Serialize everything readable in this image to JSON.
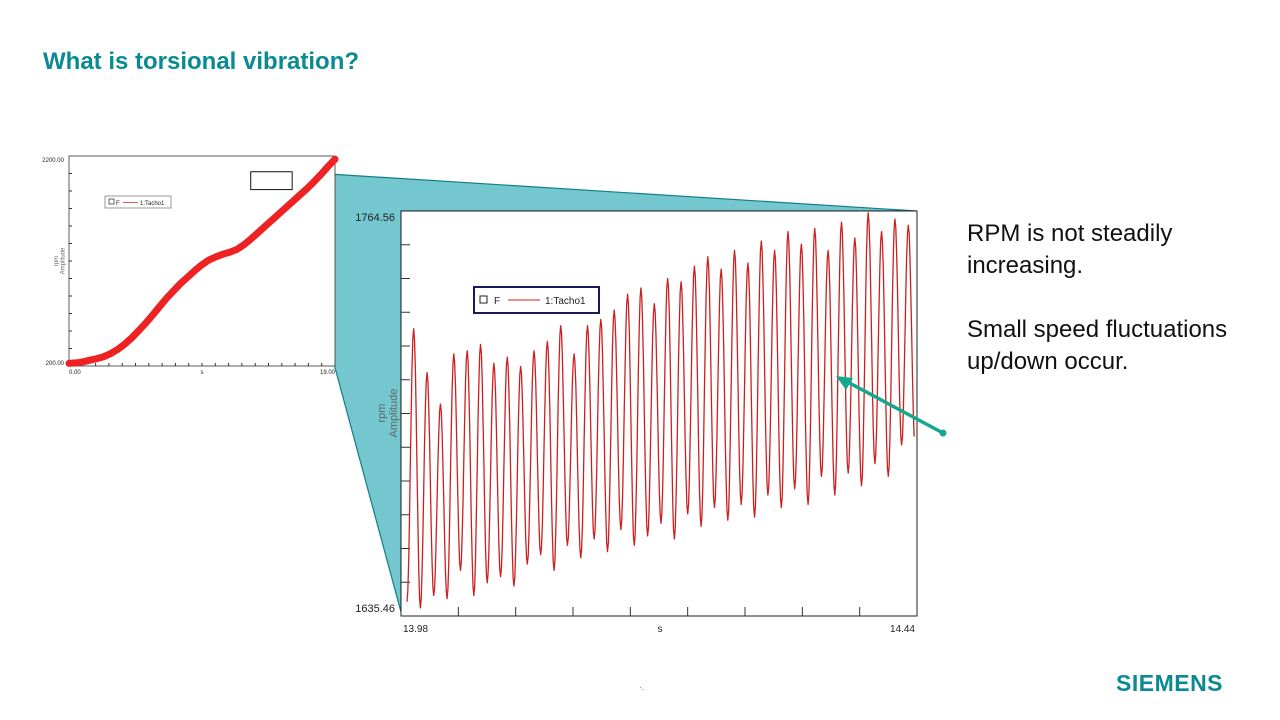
{
  "slide": {
    "title": "What is torsional vibration?",
    "bullets": [
      "RPM is not steadily increasing.",
      "Small speed fluctuations up/down occur."
    ],
    "brand": "SIEMENS",
    "footer_mark": "·.",
    "accent_color": "#0a8a93",
    "arrow_color": "#14a88f"
  },
  "chart_data": [
    {
      "type": "line",
      "title": "",
      "legend": {
        "marker": "F",
        "series_label": "1:Tacho1",
        "placement": "top-left"
      },
      "xlabel": "s",
      "ylabel": "rpm\nAmplitude",
      "xlim": [
        0.0,
        19.0
      ],
      "ylim": [
        200.0,
        2200.0
      ],
      "x_tick_labels": [
        "0.00",
        "19.00"
      ],
      "y_tick_labels": [
        "200.00",
        "2200.00"
      ],
      "grid": false,
      "series_color": "#ee2222",
      "series": [
        {
          "name": "1:Tacho1",
          "x": [
            0,
            0.5,
            1,
            1.5,
            2,
            2.5,
            3,
            3.5,
            4,
            4.5,
            5,
            5.5,
            6,
            6.5,
            7,
            7.5,
            8,
            8.5,
            9,
            9.5,
            10,
            10.5,
            11,
            11.5,
            12,
            12.5,
            13,
            13.5,
            14,
            14.5,
            15,
            15.5,
            16,
            16.5,
            17,
            17.5,
            18,
            18.5,
            19
          ],
          "y": [
            225,
            230,
            240,
            255,
            270,
            290,
            320,
            360,
            410,
            470,
            540,
            610,
            690,
            770,
            850,
            920,
            990,
            1050,
            1110,
            1165,
            1210,
            1240,
            1265,
            1285,
            1310,
            1355,
            1410,
            1470,
            1530,
            1590,
            1650,
            1710,
            1770,
            1830,
            1890,
            1955,
            2025,
            2100,
            2170
          ]
        }
      ],
      "zoom_box": {
        "x": [
          13.98,
          14.44
        ],
        "y": [
          1635.46,
          1764.56
        ]
      }
    },
    {
      "type": "line",
      "title": "",
      "legend": {
        "marker": "F",
        "series_label": "1:Tacho1",
        "placement": "top-left"
      },
      "xlabel": "s",
      "ylabel": "rpm\nAmplitude",
      "xlim": [
        13.98,
        14.44
      ],
      "ylim": [
        1635.46,
        1764.56
      ],
      "x_tick_labels": [
        "13.98",
        "14.44"
      ],
      "y_tick_labels": [
        "1635.46",
        "1764.56"
      ],
      "grid": false,
      "series_color": "#cc2020",
      "series": [
        {
          "name": "1:Tacho1",
          "oscillation": {
            "cycles": 38,
            "peak_y": [
              1727,
              1713,
              1703,
              1719,
              1720,
              1722,
              1716,
              1718,
              1715,
              1720,
              1723,
              1728,
              1719,
              1728,
              1730,
              1733,
              1738,
              1740,
              1735,
              1743,
              1742,
              1747,
              1750,
              1746,
              1752,
              1748,
              1755,
              1752,
              1758,
              1754,
              1759,
              1752,
              1761,
              1756,
              1764,
              1758,
              1762,
              1760
            ],
            "trough_y": [
              1640,
              1638,
              1642,
              1641,
              1650,
              1642,
              1646,
              1648,
              1645,
              1652,
              1655,
              1650,
              1658,
              1654,
              1660,
              1656,
              1663,
              1658,
              1661,
              1665,
              1660,
              1668,
              1664,
              1670,
              1666,
              1671,
              1667,
              1674,
              1670,
              1676,
              1671,
              1680,
              1674,
              1681,
              1677,
              1684,
              1680,
              1690
            ]
          }
        }
      ]
    }
  ]
}
